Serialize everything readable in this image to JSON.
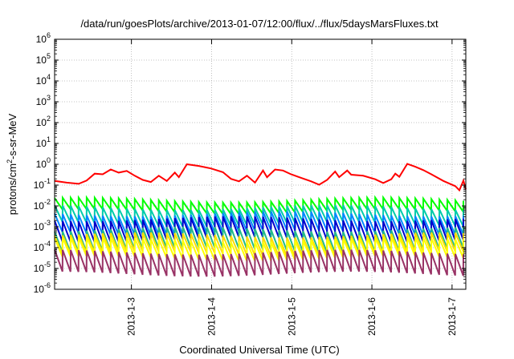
{
  "chart_data": {
    "type": "line",
    "title": "/data/run/goesPlots/archive/2013-01-07/12:00/flux/../flux/5daysMarsFluxes.txt",
    "xlabel": "Coordinated Universal Time (UTC)",
    "ylabel_parts": [
      "protons/cm",
      "2",
      "-s-sr-MeV"
    ],
    "y_scale": "log",
    "y_exponent_range": [
      -6,
      6
    ],
    "ytick_base": "10",
    "ytick_exponents": [
      "-6",
      "-5",
      "-4",
      "-3",
      "-2",
      "-1",
      "0",
      "1",
      "2",
      "3",
      "4",
      "5",
      "6"
    ],
    "x_range_days": [
      "2013-01-02 00:50",
      "2013-01-07 12:00"
    ],
    "x_ticks": [
      "2013-1-3",
      "2013-1-4",
      "2013-1-5",
      "2013-1-6",
      "2013-1-7"
    ],
    "grid": true,
    "series": [
      {
        "color": "#ff0000",
        "points": [
          [
            0.0,
            -0.8
          ],
          [
            0.15,
            -0.88
          ],
          [
            0.3,
            -0.94
          ],
          [
            0.4,
            -0.78
          ],
          [
            0.5,
            -0.45
          ],
          [
            0.6,
            -0.48
          ],
          [
            0.7,
            -0.25
          ],
          [
            0.8,
            -0.4
          ],
          [
            0.9,
            -0.32
          ],
          [
            1.0,
            -0.55
          ],
          [
            1.1,
            -0.75
          ],
          [
            1.2,
            -0.85
          ],
          [
            1.3,
            -0.55
          ],
          [
            1.4,
            -0.8
          ],
          [
            1.5,
            -0.4
          ],
          [
            1.55,
            -0.62
          ],
          [
            1.65,
            0.0
          ],
          [
            1.8,
            -0.08
          ],
          [
            1.95,
            -0.2
          ],
          [
            2.1,
            -0.38
          ],
          [
            2.2,
            -0.7
          ],
          [
            2.3,
            -0.82
          ],
          [
            2.4,
            -0.55
          ],
          [
            2.5,
            -0.88
          ],
          [
            2.6,
            -0.3
          ],
          [
            2.65,
            -0.62
          ],
          [
            2.75,
            -0.25
          ],
          [
            2.85,
            -0.3
          ],
          [
            2.95,
            -0.48
          ],
          [
            3.05,
            -0.62
          ],
          [
            3.2,
            -0.82
          ],
          [
            3.3,
            -0.98
          ],
          [
            3.4,
            -0.75
          ],
          [
            3.5,
            -0.35
          ],
          [
            3.55,
            -0.62
          ],
          [
            3.65,
            -0.3
          ],
          [
            3.7,
            -0.5
          ],
          [
            3.85,
            -0.55
          ],
          [
            4.0,
            -0.72
          ],
          [
            4.1,
            -0.9
          ],
          [
            4.2,
            -0.72
          ],
          [
            4.25,
            -0.45
          ],
          [
            4.3,
            -0.6
          ],
          [
            4.4,
            0.02
          ],
          [
            4.5,
            -0.12
          ],
          [
            4.6,
            -0.28
          ],
          [
            4.7,
            -0.48
          ],
          [
            4.85,
            -0.8
          ],
          [
            5.0,
            -1.05
          ],
          [
            5.05,
            -1.25
          ],
          [
            5.1,
            -0.78
          ],
          [
            5.13,
            -1.2
          ]
        ]
      },
      {
        "color": "#00ff00",
        "base": -1.72,
        "amp": 0.55
      },
      {
        "color": "#00ccaa",
        "base": -2.08,
        "amp": 0.8
      },
      {
        "color": "#0088ff",
        "base": -2.38,
        "amp": 0.9
      },
      {
        "color": "#0000cc",
        "base": -2.62,
        "amp": 1.0
      },
      {
        "color": "#22bb88",
        "base": -3.12,
        "amp": 1.0
      },
      {
        "color": "#ffdd00",
        "base": -3.4,
        "amp": 0.9
      },
      {
        "color": "#ffff00",
        "base": -3.62,
        "amp": 0.9
      },
      {
        "color": "#993366",
        "base": -4.22,
        "amp": 1.05
      }
    ]
  }
}
